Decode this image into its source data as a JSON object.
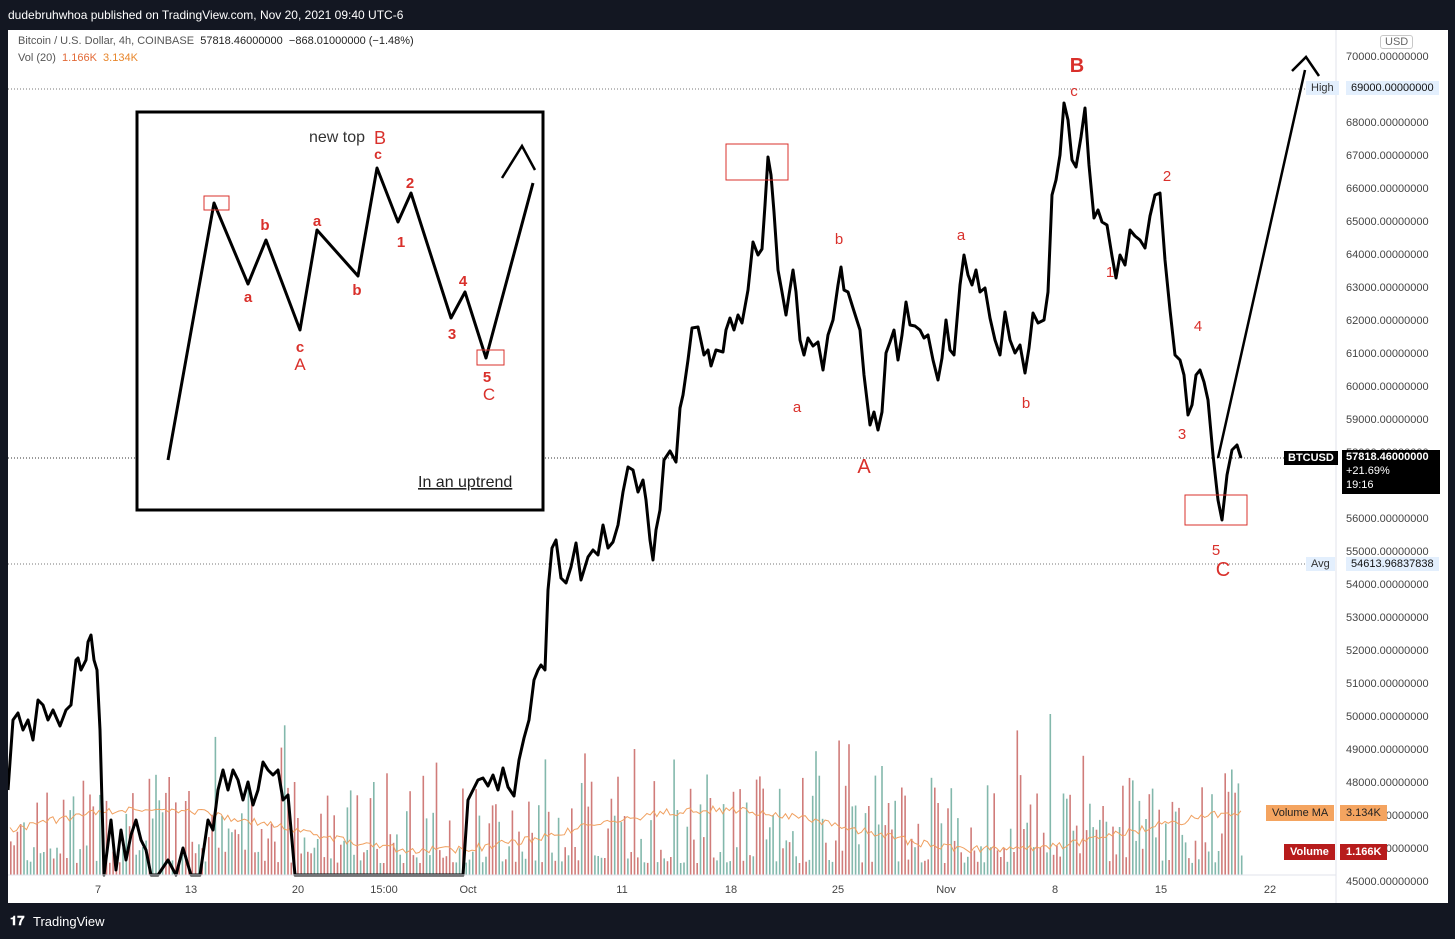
{
  "header": {
    "published": "dudebruhwhoa published on TradingView.com, Nov 20, 2021 09:40 UTC-6"
  },
  "legend": {
    "symbol": "Bitcoin / U.S. Dollar, 4h, COINBASE",
    "price": "57818.46000000",
    "change": "−868.01000000 (−1.48%)",
    "vol_label": "Vol (20)",
    "vol_value": "1.166K",
    "vol_ma_value": "3.134K"
  },
  "axis": {
    "currency": "USD",
    "y_ticks": [
      "70000.00000000",
      "69000.00000000",
      "68000.00000000",
      "67000.00000000",
      "66000.00000000",
      "65000.00000000",
      "64000.00000000",
      "63000.00000000",
      "62000.00000000",
      "61000.00000000",
      "60000.00000000",
      "59000.00000000",
      "58000.00000000",
      "57000.00000000",
      "56000.00000000",
      "55000.00000000",
      "54000.00000000",
      "53000.00000000",
      "52000.00000000",
      "51000.00000000",
      "50000.00000000",
      "49000.00000000",
      "48000.00000000",
      "47000.00000000",
      "46000.00000000",
      "45000.00000000"
    ],
    "x_ticks": [
      "7",
      "13",
      "20",
      "15:00",
      "Oct",
      "11",
      "18",
      "25",
      "Nov",
      "8",
      "15",
      "22"
    ]
  },
  "markers": {
    "high_label": "High",
    "high_value": "69000.00000000",
    "symbol_tag": "BTCUSD",
    "price": "57818.46000000",
    "pct": "+21.69%",
    "countdown": "19:16",
    "avg_label": "Avg",
    "avg_value": "54613.96837838",
    "vol_ma_label": "Volume MA",
    "vol_ma_value": "3.134K",
    "vol_label": "Volume",
    "vol_value": "1.166K"
  },
  "inset": {
    "new_top": "new top",
    "caption": "In an uptrend",
    "labels": {
      "B": "B",
      "c1": "c",
      "a1": "a",
      "b1": "b",
      "a2": "a",
      "b2": "b",
      "c2": "c",
      "A": "A",
      "two": "2",
      "one": "1",
      "four": "4",
      "three": "3",
      "five": "5",
      "C": "C"
    }
  },
  "waves": {
    "B": "B",
    "c": "c",
    "two": "2",
    "a1": "a",
    "b1": "b",
    "a2": "a",
    "b2": "b",
    "A": "A",
    "one": "1",
    "four": "4",
    "three": "3",
    "five": "5",
    "C": "C"
  },
  "footer": {
    "brand": "TradingView"
  },
  "colors": {
    "background": "#131722",
    "price_line": "#000000",
    "wave_labels": "#d9302b",
    "volume_up": "#26a69a",
    "volume_down": "#ef5350",
    "volume_ma": "#f0a060",
    "box": "#d9302b"
  },
  "chart_data": {
    "type": "line",
    "title": "Bitcoin / U.S. Dollar, 4h, COINBASE",
    "ylim": [
      45000,
      70000
    ],
    "x_ticks": [
      "7",
      "13",
      "20",
      "15:00",
      "Oct",
      "11",
      "18",
      "25",
      "Nov",
      "8",
      "15",
      "22"
    ],
    "series": [
      {
        "name": "BTCUSD",
        "x": [
          "Sep 3",
          "Sep 5",
          "Sep 7",
          "Sep 9",
          "Sep 13",
          "Sep 16",
          "Sep 20",
          "Oct 1",
          "Oct 6",
          "Oct 7",
          "Oct 10",
          "Oct 13",
          "Oct 16",
          "Oct 20",
          "Oct 24",
          "Oct 27",
          "Oct 28",
          "Oct 31",
          "Nov 3",
          "Nov 6",
          "Nov 8",
          "Nov 10",
          "Nov 13",
          "Nov 15",
          "Nov 17",
          "Nov 18",
          "Nov 19",
          "Nov 20"
        ],
        "values": [
          48000,
          50500,
          52600,
          47700,
          44000,
          47800,
          47500,
          47800,
          51500,
          54800,
          55200,
          56800,
          61300,
          66900,
          61400,
          58500,
          60500,
          62200,
          61800,
          61400,
          66500,
          68500,
          64200,
          65800,
          60400,
          56000,
          58500,
          57800
        ]
      }
    ],
    "annotations": {
      "high": 69000,
      "avg": 54613.96837838,
      "last": 57818.46
    }
  }
}
